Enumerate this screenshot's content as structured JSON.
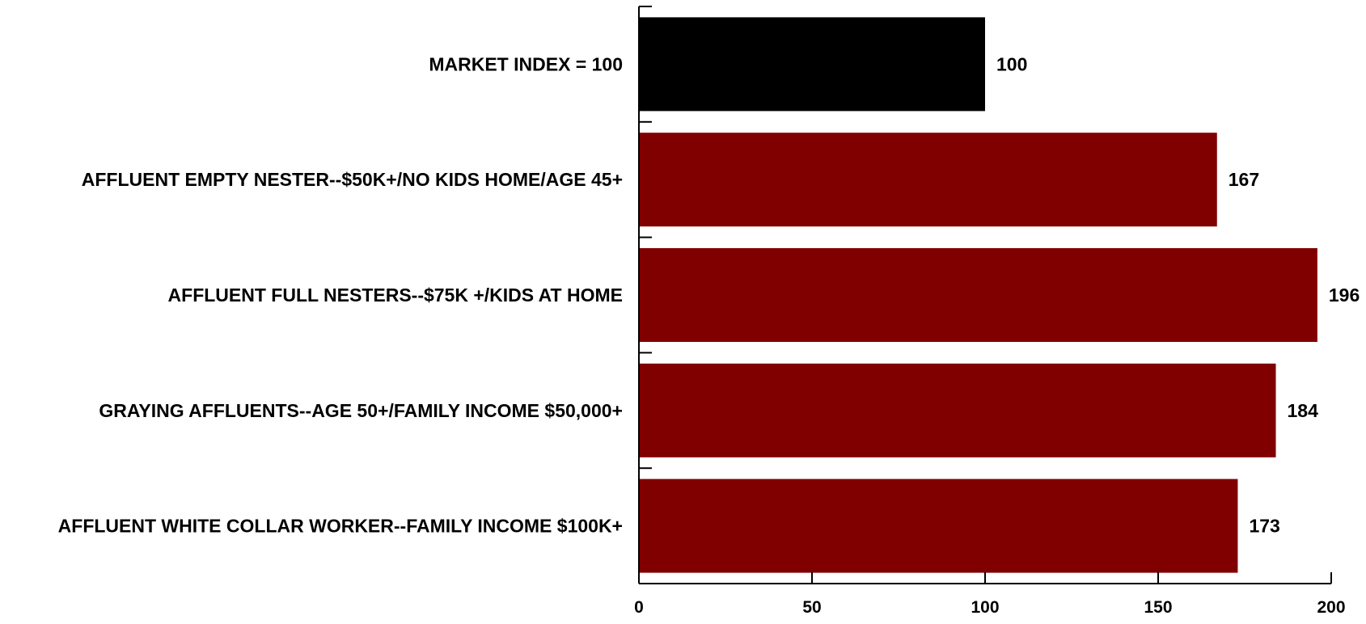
{
  "chart_data": {
    "type": "bar",
    "orientation": "horizontal",
    "categories": [
      "MARKET INDEX = 100",
      "AFFLUENT EMPTY NESTER--$50K+/NO KIDS HOME/AGE 45+",
      "AFFLUENT FULL NESTERS--$75K +/KIDS AT HOME",
      "GRAYING AFFLUENTS--AGE 50+/FAMILY INCOME $50,000+",
      "AFFLUENT WHITE COLLAR WORKER--FAMILY INCOME $100K+"
    ],
    "values": [
      100,
      167,
      196,
      184,
      173
    ],
    "value_labels": [
      "100",
      "167",
      "196",
      "184",
      "173"
    ],
    "bar_colors": [
      "#000000",
      "#800000",
      "#800000",
      "#800000",
      "#800000"
    ],
    "xlim": [
      0,
      200
    ],
    "x_ticks": [
      0,
      50,
      100,
      150,
      200
    ],
    "x_tick_labels": [
      "0",
      "50",
      "100",
      "150",
      "200"
    ],
    "title": "",
    "xlabel": "",
    "ylabel": "",
    "grid": false,
    "legend": "none"
  }
}
